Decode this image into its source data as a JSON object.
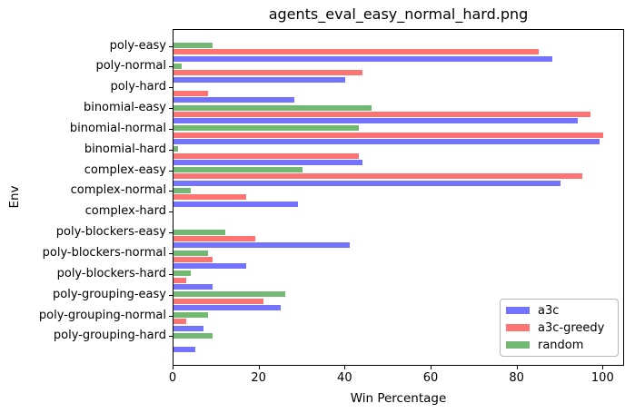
{
  "window": {
    "title": "agents_eval_easy_normal_hard.png"
  },
  "chart_data": {
    "type": "bar",
    "orientation": "horizontal",
    "title": "agents_eval_easy_normal_hard.png",
    "xlabel": "Win Percentage",
    "ylabel": "Env",
    "xlim": [
      0,
      105
    ],
    "x_ticks": [
      0,
      20,
      40,
      60,
      80,
      100
    ],
    "grid": false,
    "legend_position": "lower right",
    "categories": [
      "poly-easy",
      "poly-normal",
      "poly-hard",
      "binomial-easy",
      "binomial-normal",
      "binomial-hard",
      "complex-easy",
      "complex-normal",
      "complex-hard",
      "poly-blockers-easy",
      "poly-blockers-normal",
      "poly-blockers-hard",
      "poly-grouping-easy",
      "poly-grouping-normal",
      "poly-grouping-hard"
    ],
    "series": [
      {
        "name": "a3c",
        "color": "#7373ff",
        "values": [
          88,
          40,
          28,
          94,
          99,
          44,
          90,
          29,
          0,
          41,
          17,
          9,
          25,
          7,
          5
        ]
      },
      {
        "name": "a3c-greedy",
        "color": "#ff7373",
        "values": [
          85,
          44,
          8,
          97,
          100,
          43,
          95,
          17,
          0,
          19,
          9,
          3,
          21,
          3,
          0
        ]
      },
      {
        "name": "random",
        "color": "#73b973",
        "values": [
          9,
          2,
          0,
          46,
          43,
          1,
          30,
          4,
          0,
          12,
          8,
          4,
          26,
          8,
          9
        ]
      }
    ]
  }
}
